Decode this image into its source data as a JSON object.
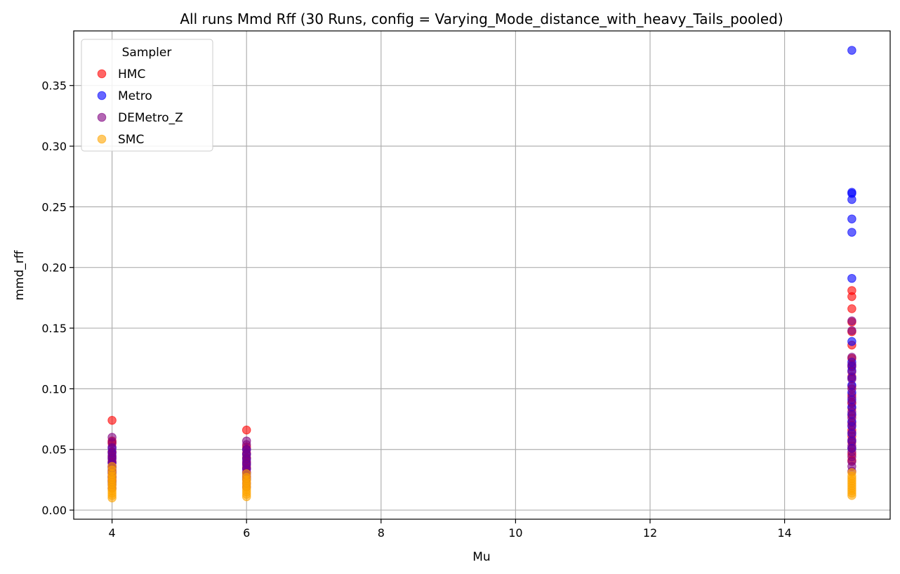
{
  "chart_data": {
    "type": "scatter",
    "title": "All runs Mmd Rff (30 Runs, config = Varying_Mode_distance_with_heavy_Tails_pooled)",
    "xlabel": "Mu",
    "ylabel": "mmd_rff",
    "xlim": [
      3.43,
      15.57
    ],
    "ylim": [
      -0.0075,
      0.395
    ],
    "xticks": [
      4,
      6,
      8,
      10,
      12,
      14
    ],
    "yticks": [
      0.0,
      0.05,
      0.1,
      0.15,
      0.2,
      0.25,
      0.3,
      0.35
    ],
    "ytick_labels": [
      "0.00",
      "0.05",
      "0.10",
      "0.15",
      "0.20",
      "0.25",
      "0.30",
      "0.35"
    ],
    "grid": true,
    "legend_title": "Sampler",
    "legend_position": "upper-left",
    "series": [
      {
        "name": "HMC",
        "color": "#ff0000",
        "points": [
          {
            "x": 4,
            "y": 0.074
          },
          {
            "x": 4,
            "y": 0.057
          },
          {
            "x": 4,
            "y": 0.055
          },
          {
            "x": 4,
            "y": 0.048
          },
          {
            "x": 4,
            "y": 0.044
          },
          {
            "x": 4,
            "y": 0.04
          },
          {
            "x": 4,
            "y": 0.036
          },
          {
            "x": 4,
            "y": 0.032
          },
          {
            "x": 4,
            "y": 0.028
          },
          {
            "x": 4,
            "y": 0.025
          },
          {
            "x": 6,
            "y": 0.066
          },
          {
            "x": 6,
            "y": 0.052
          },
          {
            "x": 6,
            "y": 0.047
          },
          {
            "x": 6,
            "y": 0.043
          },
          {
            "x": 6,
            "y": 0.039
          },
          {
            "x": 6,
            "y": 0.035
          },
          {
            "x": 6,
            "y": 0.031
          },
          {
            "x": 6,
            "y": 0.027
          },
          {
            "x": 15,
            "y": 0.181
          },
          {
            "x": 15,
            "y": 0.176
          },
          {
            "x": 15,
            "y": 0.166
          },
          {
            "x": 15,
            "y": 0.155
          },
          {
            "x": 15,
            "y": 0.147
          },
          {
            "x": 15,
            "y": 0.136
          },
          {
            "x": 15,
            "y": 0.125
          },
          {
            "x": 15,
            "y": 0.118
          },
          {
            "x": 15,
            "y": 0.11
          },
          {
            "x": 15,
            "y": 0.102
          },
          {
            "x": 15,
            "y": 0.095
          },
          {
            "x": 15,
            "y": 0.088
          },
          {
            "x": 15,
            "y": 0.084
          },
          {
            "x": 15,
            "y": 0.078
          },
          {
            "x": 15,
            "y": 0.072
          },
          {
            "x": 15,
            "y": 0.066
          },
          {
            "x": 15,
            "y": 0.061
          },
          {
            "x": 15,
            "y": 0.056
          },
          {
            "x": 15,
            "y": 0.051
          },
          {
            "x": 15,
            "y": 0.046
          },
          {
            "x": 15,
            "y": 0.041
          }
        ]
      },
      {
        "name": "Metro",
        "color": "#0000ff",
        "points": [
          {
            "x": 4,
            "y": 0.051
          },
          {
            "x": 4,
            "y": 0.047
          },
          {
            "x": 4,
            "y": 0.043
          },
          {
            "x": 4,
            "y": 0.039
          },
          {
            "x": 4,
            "y": 0.035
          },
          {
            "x": 4,
            "y": 0.031
          },
          {
            "x": 4,
            "y": 0.027
          },
          {
            "x": 4,
            "y": 0.023
          },
          {
            "x": 6,
            "y": 0.05
          },
          {
            "x": 6,
            "y": 0.046
          },
          {
            "x": 6,
            "y": 0.042
          },
          {
            "x": 6,
            "y": 0.038
          },
          {
            "x": 6,
            "y": 0.034
          },
          {
            "x": 6,
            "y": 0.03
          },
          {
            "x": 6,
            "y": 0.026
          },
          {
            "x": 15,
            "y": 0.379
          },
          {
            "x": 15,
            "y": 0.262
          },
          {
            "x": 15,
            "y": 0.261
          },
          {
            "x": 15,
            "y": 0.256
          },
          {
            "x": 15,
            "y": 0.24
          },
          {
            "x": 15,
            "y": 0.229
          },
          {
            "x": 15,
            "y": 0.191
          },
          {
            "x": 15,
            "y": 0.139
          },
          {
            "x": 15,
            "y": 0.122
          },
          {
            "x": 15,
            "y": 0.119
          },
          {
            "x": 15,
            "y": 0.115
          },
          {
            "x": 15,
            "y": 0.109
          },
          {
            "x": 15,
            "y": 0.103
          },
          {
            "x": 15,
            "y": 0.097
          },
          {
            "x": 15,
            "y": 0.091
          },
          {
            "x": 15,
            "y": 0.085
          },
          {
            "x": 15,
            "y": 0.079
          },
          {
            "x": 15,
            "y": 0.073
          },
          {
            "x": 15,
            "y": 0.069
          },
          {
            "x": 15,
            "y": 0.063
          },
          {
            "x": 15,
            "y": 0.057
          },
          {
            "x": 15,
            "y": 0.051
          }
        ]
      },
      {
        "name": "DEMetro_Z",
        "color": "#800080",
        "points": [
          {
            "x": 4,
            "y": 0.06
          },
          {
            "x": 4,
            "y": 0.056
          },
          {
            "x": 4,
            "y": 0.052
          },
          {
            "x": 4,
            "y": 0.048
          },
          {
            "x": 4,
            "y": 0.045
          },
          {
            "x": 4,
            "y": 0.042
          },
          {
            "x": 4,
            "y": 0.039
          },
          {
            "x": 4,
            "y": 0.036
          },
          {
            "x": 4,
            "y": 0.033
          },
          {
            "x": 4,
            "y": 0.03
          },
          {
            "x": 4,
            "y": 0.027
          },
          {
            "x": 4,
            "y": 0.024
          },
          {
            "x": 4,
            "y": 0.021
          },
          {
            "x": 4,
            "y": 0.018
          },
          {
            "x": 6,
            "y": 0.057
          },
          {
            "x": 6,
            "y": 0.054
          },
          {
            "x": 6,
            "y": 0.05
          },
          {
            "x": 6,
            "y": 0.046
          },
          {
            "x": 6,
            "y": 0.043
          },
          {
            "x": 6,
            "y": 0.04
          },
          {
            "x": 6,
            "y": 0.037
          },
          {
            "x": 6,
            "y": 0.034
          },
          {
            "x": 6,
            "y": 0.031
          },
          {
            "x": 6,
            "y": 0.028
          },
          {
            "x": 6,
            "y": 0.025
          },
          {
            "x": 6,
            "y": 0.022
          },
          {
            "x": 6,
            "y": 0.019
          },
          {
            "x": 15,
            "y": 0.156
          },
          {
            "x": 15,
            "y": 0.148
          },
          {
            "x": 15,
            "y": 0.126
          },
          {
            "x": 15,
            "y": 0.12
          },
          {
            "x": 15,
            "y": 0.114
          },
          {
            "x": 15,
            "y": 0.108
          },
          {
            "x": 15,
            "y": 0.1
          },
          {
            "x": 15,
            "y": 0.093
          },
          {
            "x": 15,
            "y": 0.089
          },
          {
            "x": 15,
            "y": 0.081
          },
          {
            "x": 15,
            "y": 0.076
          },
          {
            "x": 15,
            "y": 0.07
          },
          {
            "x": 15,
            "y": 0.064
          },
          {
            "x": 15,
            "y": 0.058
          },
          {
            "x": 15,
            "y": 0.053
          },
          {
            "x": 15,
            "y": 0.048
          },
          {
            "x": 15,
            "y": 0.044
          },
          {
            "x": 15,
            "y": 0.04
          },
          {
            "x": 15,
            "y": 0.036
          },
          {
            "x": 15,
            "y": 0.032
          }
        ]
      },
      {
        "name": "SMC",
        "color": "#ffa500",
        "points": [
          {
            "x": 4,
            "y": 0.036
          },
          {
            "x": 4,
            "y": 0.033
          },
          {
            "x": 4,
            "y": 0.03
          },
          {
            "x": 4,
            "y": 0.028
          },
          {
            "x": 4,
            "y": 0.026
          },
          {
            "x": 4,
            "y": 0.024
          },
          {
            "x": 4,
            "y": 0.022
          },
          {
            "x": 4,
            "y": 0.02
          },
          {
            "x": 4,
            "y": 0.018
          },
          {
            "x": 4,
            "y": 0.016
          },
          {
            "x": 4,
            "y": 0.014
          },
          {
            "x": 4,
            "y": 0.012
          },
          {
            "x": 4,
            "y": 0.01
          },
          {
            "x": 6,
            "y": 0.03
          },
          {
            "x": 6,
            "y": 0.027
          },
          {
            "x": 6,
            "y": 0.025
          },
          {
            "x": 6,
            "y": 0.023
          },
          {
            "x": 6,
            "y": 0.021
          },
          {
            "x": 6,
            "y": 0.019
          },
          {
            "x": 6,
            "y": 0.017
          },
          {
            "x": 6,
            "y": 0.015
          },
          {
            "x": 6,
            "y": 0.013
          },
          {
            "x": 6,
            "y": 0.011
          },
          {
            "x": 15,
            "y": 0.031
          },
          {
            "x": 15,
            "y": 0.028
          },
          {
            "x": 15,
            "y": 0.026
          },
          {
            "x": 15,
            "y": 0.024
          },
          {
            "x": 15,
            "y": 0.022
          },
          {
            "x": 15,
            "y": 0.02
          },
          {
            "x": 15,
            "y": 0.018
          },
          {
            "x": 15,
            "y": 0.016
          },
          {
            "x": 15,
            "y": 0.014
          },
          {
            "x": 15,
            "y": 0.012
          }
        ]
      }
    ]
  }
}
